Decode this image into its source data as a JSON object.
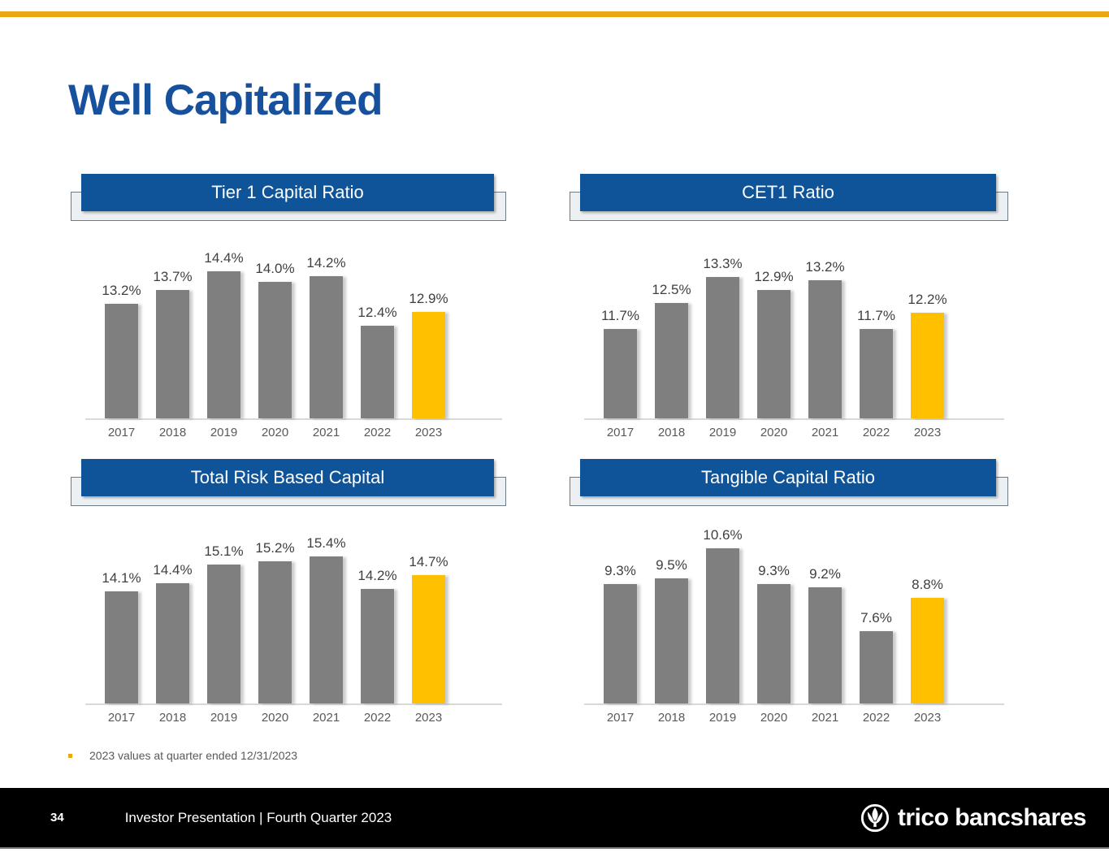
{
  "slide": {
    "title": "Well Capitalized",
    "colors": {
      "accent_gold": "#E8A713",
      "title_blue": "#17519E",
      "panel_blue": "#0F5499",
      "bar_gray": "#7F7F7F",
      "bar_highlight_gold": "#FFC000"
    }
  },
  "chart_data": [
    {
      "type": "bar",
      "title": "Tier 1 Capital Ratio",
      "categories": [
        "2017",
        "2018",
        "2019",
        "2020",
        "2021",
        "2022",
        "2023"
      ],
      "values": [
        13.2,
        13.7,
        14.4,
        14.0,
        14.2,
        12.4,
        12.9
      ],
      "labels": [
        "13.2%",
        "13.7%",
        "14.4%",
        "14.0%",
        "14.2%",
        "12.4%",
        "12.9%"
      ],
      "ylim": [
        9.0,
        15.4
      ],
      "highlight_index": 6,
      "bar_color": "#7F7F7F",
      "highlight_color": "#FFC000",
      "grid": false,
      "legend": "none"
    },
    {
      "type": "bar",
      "title": "CET1 Ratio",
      "categories": [
        "2017",
        "2018",
        "2019",
        "2020",
        "2021",
        "2022",
        "2023"
      ],
      "values": [
        11.7,
        12.5,
        13.3,
        12.9,
        13.2,
        11.7,
        12.2
      ],
      "labels": [
        "11.7%",
        "12.5%",
        "13.3%",
        "12.9%",
        "13.2%",
        "11.7%",
        "12.2%"
      ],
      "ylim": [
        9.0,
        14.3
      ],
      "highlight_index": 6,
      "bar_color": "#7F7F7F",
      "highlight_color": "#FFC000",
      "grid": false,
      "legend": "none"
    },
    {
      "type": "bar",
      "title": "Total Risk Based Capital",
      "categories": [
        "2017",
        "2018",
        "2019",
        "2020",
        "2021",
        "2022",
        "2023"
      ],
      "values": [
        14.1,
        14.4,
        15.1,
        15.2,
        15.4,
        14.2,
        14.7
      ],
      "labels": [
        "14.1%",
        "14.4%",
        "15.1%",
        "15.2%",
        "15.4%",
        "14.2%",
        "14.7%"
      ],
      "ylim": [
        10.0,
        16.4
      ],
      "highlight_index": 6,
      "bar_color": "#7F7F7F",
      "highlight_color": "#FFC000",
      "grid": false,
      "legend": "none"
    },
    {
      "type": "bar",
      "title": "Tangible Capital Ratio",
      "categories": [
        "2017",
        "2018",
        "2019",
        "2020",
        "2021",
        "2022",
        "2023"
      ],
      "values": [
        9.3,
        9.5,
        10.6,
        9.3,
        9.2,
        7.6,
        8.8
      ],
      "labels": [
        "9.3%",
        "9.5%",
        "10.6%",
        "9.3%",
        "9.2%",
        "7.6%",
        "8.8%"
      ],
      "ylim": [
        5.0,
        11.3
      ],
      "highlight_index": 6,
      "bar_color": "#7F7F7F",
      "highlight_color": "#FFC000",
      "grid": false,
      "legend": "none"
    }
  ],
  "footnote": {
    "text": "2023 values at quarter ended 12/31/2023"
  },
  "footer": {
    "page_number": "34",
    "caption": "Investor Presentation | Fourth Quarter 2023",
    "logo_text": "trico bancshares"
  }
}
